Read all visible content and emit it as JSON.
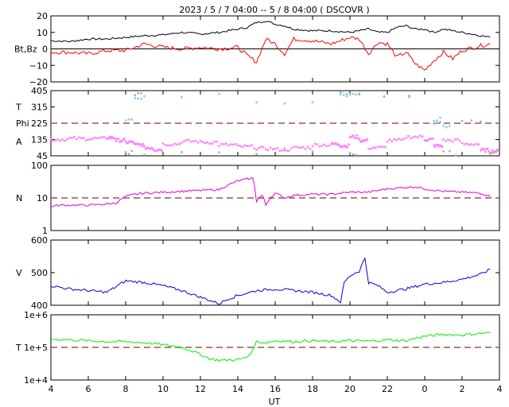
{
  "title": "2023  /  5  /  7   04:00  --   5  /  8   04:00  ( DSCOVR )",
  "xlabel": "UT",
  "colors": {
    "bt": "#000000",
    "bz": "#ff0000",
    "phi": "#87ceeb",
    "theta": "#ff80ff",
    "alpha": "#b0b0b0",
    "density": "#e000e0",
    "speed": "#0000dd",
    "temperature": "#00ee00",
    "dashed_ref": "#a05050"
  },
  "chart_data": [
    {
      "type": "line",
      "panel": "magnetic",
      "ylabel": "Bt,Bz",
      "ylim": [
        -20,
        20
      ],
      "yticks": [
        "20",
        "10",
        "0",
        "−10",
        "−20"
      ],
      "xticks": [
        "4",
        "6",
        "8",
        "10",
        "12",
        "14",
        "16",
        "18",
        "20",
        "22",
        "0",
        "2",
        "4"
      ],
      "x_hours": [
        4,
        5,
        6,
        7,
        8,
        9,
        10,
        11,
        12,
        13,
        14,
        14.5,
        15,
        15.5,
        16,
        16.5,
        17,
        18,
        19,
        20,
        20.5,
        21,
        21.5,
        22,
        22.5,
        23,
        23.5,
        24,
        24.5,
        25,
        25.5,
        26,
        27,
        27.5
      ],
      "series": [
        {
          "name": "Bt",
          "values": [
            5,
            4.5,
            6,
            6,
            7,
            8,
            8.5,
            10,
            9,
            10,
            12,
            13,
            16,
            17,
            15,
            14,
            12,
            11,
            11,
            10,
            11,
            12,
            10,
            10,
            13,
            14,
            12,
            12,
            10,
            12,
            11,
            10,
            8,
            7
          ]
        },
        {
          "name": "Bz",
          "values": [
            -2,
            -2,
            -3,
            -1,
            -1,
            3,
            1,
            0,
            1,
            0,
            1,
            -4,
            -8,
            6,
            3,
            -3,
            6,
            5,
            3,
            7,
            6,
            -3,
            4,
            3,
            -5,
            -2,
            -9,
            -13,
            -7,
            -2,
            -6,
            -1,
            2,
            3
          ]
        }
      ]
    },
    {
      "type": "scatter",
      "panel": "angles",
      "ylabel_lines": [
        "T",
        "Phi",
        "A"
      ],
      "ylim": [
        45,
        405
      ],
      "yticks": [
        "405",
        "315",
        "225",
        "135",
        "45"
      ],
      "reference_line": 225,
      "x_hours": [
        4,
        5,
        6,
        7,
        7.5,
        8,
        8.5,
        9,
        9.5,
        10,
        11,
        12,
        13,
        14,
        15,
        16,
        17,
        18,
        19,
        19.5,
        20,
        20.5,
        21,
        22,
        23,
        24,
        24.5,
        25,
        26,
        27,
        27.5
      ],
      "series": [
        {
          "name": "A",
          "values": [
            135,
            140,
            140,
            145,
            130,
            120,
            105,
            90,
            80,
            110,
            125,
            120,
            105,
            95,
            85,
            80,
            90,
            105,
            110,
            100,
            150,
            130,
            90,
            130,
            150,
            135,
            100,
            130,
            110,
            75,
            70
          ]
        },
        {
          "name": "Phi",
          "values": [
            null,
            null,
            null,
            null,
            null,
            250,
            360,
            380,
            null,
            null,
            null,
            null,
            null,
            null,
            340,
            null,
            null,
            null,
            null,
            380,
            390,
            380,
            null,
            null,
            null,
            null,
            245,
            210,
            null,
            null,
            null
          ]
        },
        {
          "name": "T",
          "values": [
            null,
            null,
            null,
            null,
            null,
            60,
            380,
            60,
            null,
            null,
            null,
            null,
            null,
            null,
            65,
            null,
            null,
            null,
            null,
            390,
            60,
            380,
            null,
            null,
            null,
            null,
            230,
            60,
            240,
            null,
            65
          ]
        }
      ]
    },
    {
      "type": "line",
      "panel": "density",
      "ylabel": "N",
      "scale": "log",
      "ylim": [
        1,
        100
      ],
      "yticks": [
        "100",
        "10",
        "1"
      ],
      "reference_line": 10,
      "x_hours": [
        4,
        4.5,
        5,
        6,
        7,
        7.5,
        8,
        8.5,
        9,
        10,
        11,
        12,
        13,
        13.5,
        14,
        14.5,
        14.8,
        15,
        15.3,
        15.5,
        16,
        16.5,
        17,
        18,
        19,
        20,
        21,
        22,
        23,
        23.5,
        24,
        25,
        26,
        27,
        27.5
      ],
      "series": [
        {
          "name": "N",
          "values": [
            5.5,
            6,
            6,
            6,
            6.5,
            7,
            11,
            13,
            14,
            15,
            16,
            17,
            18,
            25,
            33,
            38,
            40,
            8,
            12,
            6,
            14,
            10,
            12,
            13,
            13,
            15,
            15,
            19,
            21,
            22,
            19,
            16,
            15,
            14,
            11
          ]
        }
      ]
    },
    {
      "type": "line",
      "panel": "speed",
      "ylabel": "V",
      "ylim": [
        400,
        600
      ],
      "yticks": [
        "600",
        "500",
        "400"
      ],
      "x_hours": [
        4,
        5,
        6,
        7,
        8,
        9,
        10,
        11,
        12,
        13,
        13.5,
        14,
        15,
        16,
        17,
        18,
        19,
        19.5,
        19.7,
        20,
        20.3,
        20.5,
        20.8,
        21,
        21.5,
        22,
        23,
        24,
        25,
        26,
        27,
        27.5
      ],
      "series": [
        {
          "name": "V",
          "values": [
            460,
            450,
            445,
            440,
            475,
            470,
            460,
            445,
            425,
            405,
            420,
            430,
            445,
            450,
            445,
            440,
            430,
            410,
            470,
            490,
            500,
            505,
            545,
            470,
            460,
            440,
            450,
            465,
            470,
            480,
            495,
            510
          ]
        }
      ]
    },
    {
      "type": "line",
      "panel": "temperature",
      "ylabel": "T",
      "scale": "log",
      "ylim": [
        10000,
        1000000
      ],
      "yticks": [
        "1e+6",
        "1e+5",
        "1e+4"
      ],
      "reference_line": 100000,
      "x_hours": [
        4,
        5,
        6,
        7,
        8,
        9,
        10,
        11,
        12,
        12.5,
        13,
        14,
        14.5,
        14.8,
        15,
        15.5,
        16,
        17,
        18,
        19,
        20,
        21,
        22,
        23,
        24,
        25,
        26,
        27,
        27.5
      ],
      "series": [
        {
          "name": "T",
          "values": [
            180000,
            170000,
            160000,
            150000,
            150000,
            140000,
            120000,
            100000,
            60000,
            45000,
            40000,
            42000,
            50000,
            80000,
            150000,
            140000,
            160000,
            150000,
            160000,
            150000,
            160000,
            155000,
            170000,
            160000,
            220000,
            250000,
            240000,
            270000,
            280000
          ]
        }
      ]
    }
  ]
}
